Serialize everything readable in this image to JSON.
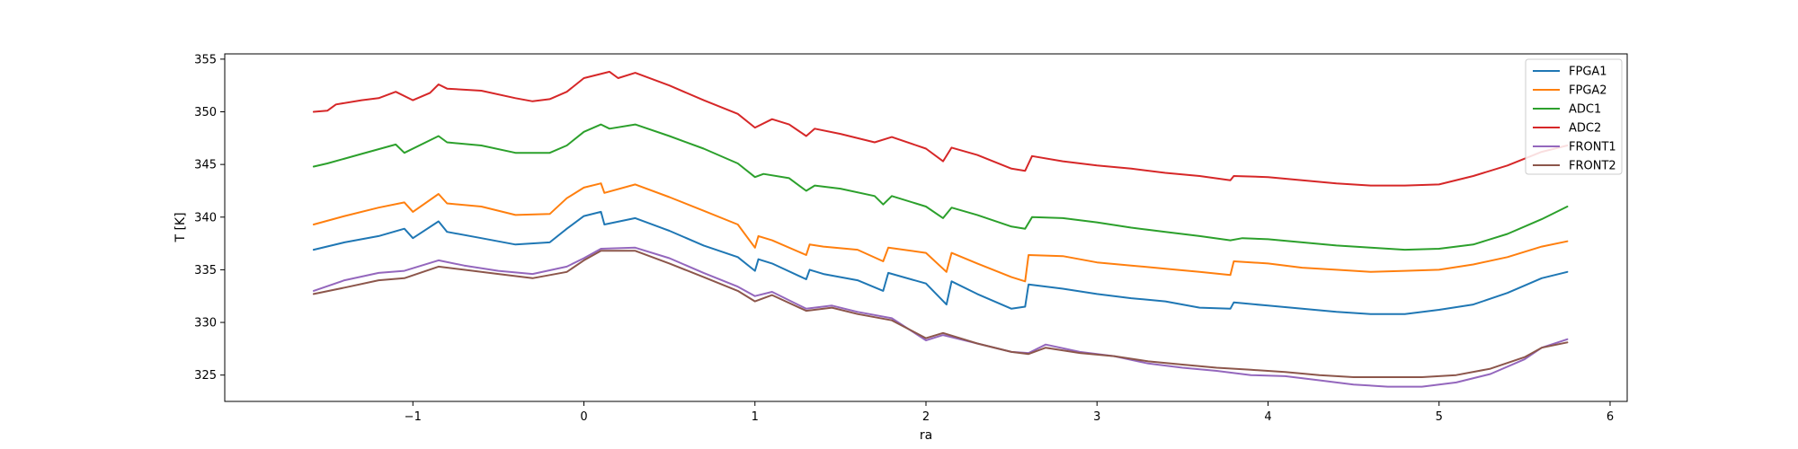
{
  "chart_data": {
    "type": "line",
    "xlabel": "ra",
    "ylabel": "T [K]",
    "xlim": [
      -2.1,
      6.1
    ],
    "ylim": [
      322.5,
      355.5
    ],
    "xticks": [
      -1,
      0,
      1,
      2,
      3,
      4,
      5,
      6
    ],
    "xtick_labels": [
      "−1",
      "0",
      "1",
      "2",
      "3",
      "4",
      "5",
      "6"
    ],
    "yticks": [
      325,
      330,
      335,
      340,
      345,
      350,
      355
    ],
    "ytick_labels": [
      "325",
      "330",
      "335",
      "340",
      "345",
      "350",
      "355"
    ],
    "grid": false,
    "legend_position": "top-right",
    "series": [
      {
        "name": "FPGA1",
        "color": "#1f77b4",
        "x": [
          -1.58,
          -1.4,
          -1.2,
          -1.05,
          -1.0,
          -0.85,
          -0.8,
          -0.6,
          -0.4,
          -0.2,
          -0.1,
          0.0,
          0.1,
          0.12,
          0.3,
          0.5,
          0.7,
          0.9,
          1.0,
          1.02,
          1.1,
          1.3,
          1.32,
          1.4,
          1.6,
          1.75,
          1.78,
          2.0,
          2.12,
          2.15,
          2.3,
          2.5,
          2.58,
          2.6,
          2.8,
          3.0,
          3.2,
          3.4,
          3.6,
          3.78,
          3.8,
          4.0,
          4.2,
          4.4,
          4.6,
          4.8,
          5.0,
          5.2,
          5.4,
          5.6,
          5.75
        ],
        "y": [
          336.9,
          337.6,
          338.2,
          338.9,
          338.0,
          339.6,
          338.6,
          338.0,
          337.4,
          337.6,
          338.9,
          340.1,
          340.5,
          339.3,
          339.9,
          338.7,
          337.3,
          336.2,
          334.9,
          336.0,
          335.6,
          334.1,
          335.0,
          334.6,
          334.0,
          333.0,
          334.7,
          333.7,
          331.7,
          333.9,
          332.7,
          331.3,
          331.5,
          333.6,
          333.2,
          332.7,
          332.3,
          332.0,
          331.4,
          331.3,
          331.9,
          331.6,
          331.3,
          331.0,
          330.8,
          330.8,
          331.2,
          331.7,
          332.8,
          334.2,
          334.8
        ]
      },
      {
        "name": "FPGA2",
        "color": "#ff7f0e",
        "x": [
          -1.58,
          -1.4,
          -1.2,
          -1.05,
          -1.0,
          -0.85,
          -0.8,
          -0.6,
          -0.4,
          -0.2,
          -0.1,
          0.0,
          0.1,
          0.12,
          0.3,
          0.5,
          0.7,
          0.9,
          1.0,
          1.02,
          1.1,
          1.3,
          1.32,
          1.4,
          1.6,
          1.75,
          1.78,
          2.0,
          2.12,
          2.15,
          2.3,
          2.5,
          2.58,
          2.6,
          2.8,
          3.0,
          3.2,
          3.4,
          3.6,
          3.78,
          3.8,
          4.0,
          4.2,
          4.4,
          4.6,
          4.8,
          5.0,
          5.2,
          5.4,
          5.6,
          5.75
        ],
        "y": [
          339.3,
          340.1,
          340.9,
          341.4,
          340.5,
          342.2,
          341.3,
          341.0,
          340.2,
          340.3,
          341.8,
          342.8,
          343.2,
          342.3,
          343.1,
          341.9,
          340.6,
          339.3,
          337.1,
          338.2,
          337.8,
          336.4,
          337.4,
          337.2,
          336.9,
          335.8,
          337.1,
          336.6,
          334.8,
          336.6,
          335.6,
          334.3,
          333.9,
          336.4,
          336.3,
          335.7,
          335.4,
          335.1,
          334.8,
          334.5,
          335.8,
          335.6,
          335.2,
          335.0,
          334.8,
          334.9,
          335.0,
          335.5,
          336.2,
          337.2,
          337.7
        ]
      },
      {
        "name": "ADC1",
        "color": "#2ca02c",
        "x": [
          -1.58,
          -1.5,
          -1.3,
          -1.1,
          -1.05,
          -0.85,
          -0.8,
          -0.6,
          -0.4,
          -0.2,
          -0.1,
          0.0,
          0.1,
          0.15,
          0.3,
          0.5,
          0.7,
          0.9,
          1.0,
          1.05,
          1.2,
          1.3,
          1.35,
          1.5,
          1.7,
          1.75,
          1.8,
          2.0,
          2.1,
          2.15,
          2.3,
          2.5,
          2.58,
          2.62,
          2.8,
          3.0,
          3.2,
          3.4,
          3.6,
          3.78,
          3.85,
          4.0,
          4.2,
          4.4,
          4.6,
          4.8,
          5.0,
          5.2,
          5.4,
          5.6,
          5.75
        ],
        "y": [
          344.8,
          345.1,
          346.0,
          346.9,
          346.1,
          347.7,
          347.1,
          346.8,
          346.1,
          346.1,
          346.8,
          348.1,
          348.8,
          348.4,
          348.8,
          347.7,
          346.5,
          345.1,
          343.8,
          344.1,
          343.7,
          342.5,
          343.0,
          342.7,
          342.0,
          341.2,
          342.0,
          341.0,
          339.9,
          340.9,
          340.2,
          339.1,
          338.9,
          340.0,
          339.9,
          339.5,
          339.0,
          338.6,
          338.2,
          337.8,
          338.0,
          337.9,
          337.6,
          337.3,
          337.1,
          336.9,
          337.0,
          337.4,
          338.4,
          339.8,
          341.0
        ]
      },
      {
        "name": "ADC2",
        "color": "#d62728",
        "x": [
          -1.58,
          -1.5,
          -1.45,
          -1.3,
          -1.2,
          -1.1,
          -1.0,
          -0.9,
          -0.85,
          -0.8,
          -0.6,
          -0.4,
          -0.3,
          -0.2,
          -0.1,
          0.0,
          0.15,
          0.2,
          0.3,
          0.5,
          0.7,
          0.9,
          1.0,
          1.1,
          1.2,
          1.3,
          1.35,
          1.5,
          1.7,
          1.8,
          2.0,
          2.1,
          2.15,
          2.3,
          2.5,
          2.58,
          2.62,
          2.8,
          3.0,
          3.2,
          3.4,
          3.6,
          3.78,
          3.8,
          4.0,
          4.2,
          4.4,
          4.6,
          4.8,
          5.0,
          5.2,
          5.4,
          5.6,
          5.75
        ],
        "y": [
          350.0,
          350.1,
          350.7,
          351.1,
          351.3,
          351.9,
          351.1,
          351.8,
          352.6,
          352.2,
          352.0,
          351.3,
          351.0,
          351.2,
          351.9,
          353.2,
          353.8,
          353.2,
          353.7,
          352.5,
          351.1,
          349.8,
          348.5,
          349.3,
          348.8,
          347.7,
          348.4,
          347.9,
          347.1,
          347.6,
          346.5,
          345.3,
          346.6,
          345.9,
          344.6,
          344.4,
          345.8,
          345.3,
          344.9,
          344.6,
          344.2,
          343.9,
          343.5,
          343.9,
          343.8,
          343.5,
          343.2,
          343.0,
          343.0,
          343.1,
          343.9,
          344.9,
          346.2,
          346.8
        ]
      },
      {
        "name": "FRONT1",
        "color": "#9467bd",
        "x": [
          -1.58,
          -1.4,
          -1.2,
          -1.05,
          -0.85,
          -0.7,
          -0.5,
          -0.3,
          -0.1,
          0.0,
          0.1,
          0.3,
          0.5,
          0.7,
          0.9,
          1.0,
          1.1,
          1.3,
          1.45,
          1.6,
          1.8,
          2.0,
          2.1,
          2.3,
          2.5,
          2.6,
          2.7,
          2.9,
          3.1,
          3.3,
          3.5,
          3.7,
          3.9,
          4.1,
          4.3,
          4.5,
          4.7,
          4.9,
          5.1,
          5.3,
          5.5,
          5.6,
          5.75
        ],
        "y": [
          333.0,
          334.0,
          334.7,
          334.9,
          335.9,
          335.4,
          334.9,
          334.6,
          335.3,
          336.1,
          337.0,
          337.1,
          336.1,
          334.7,
          333.4,
          332.5,
          332.9,
          331.3,
          331.6,
          331.0,
          330.4,
          328.3,
          328.8,
          328.0,
          327.2,
          327.1,
          327.9,
          327.2,
          326.8,
          326.1,
          325.7,
          325.4,
          325.0,
          324.9,
          324.5,
          324.1,
          323.9,
          323.9,
          324.3,
          325.1,
          326.5,
          327.6,
          328.4
        ]
      },
      {
        "name": "FRONT2",
        "color": "#8c564b",
        "x": [
          -1.58,
          -1.4,
          -1.2,
          -1.05,
          -0.85,
          -0.7,
          -0.5,
          -0.3,
          -0.1,
          0.0,
          0.1,
          0.3,
          0.5,
          0.7,
          0.9,
          1.0,
          1.1,
          1.3,
          1.45,
          1.6,
          1.8,
          2.0,
          2.1,
          2.3,
          2.5,
          2.6,
          2.7,
          2.9,
          3.1,
          3.3,
          3.5,
          3.7,
          3.9,
          4.1,
          4.3,
          4.5,
          4.7,
          4.9,
          5.1,
          5.3,
          5.5,
          5.6,
          5.75
        ],
        "y": [
          332.7,
          333.3,
          334.0,
          334.2,
          335.3,
          335.0,
          334.6,
          334.2,
          334.8,
          335.9,
          336.8,
          336.8,
          335.6,
          334.3,
          333.0,
          332.0,
          332.6,
          331.1,
          331.4,
          330.8,
          330.2,
          328.5,
          329.0,
          328.0,
          327.2,
          327.0,
          327.6,
          327.1,
          326.8,
          326.3,
          326.0,
          325.7,
          325.5,
          325.3,
          325.0,
          324.8,
          324.8,
          324.8,
          325.0,
          325.6,
          326.7,
          327.6,
          328.1
        ]
      }
    ]
  }
}
